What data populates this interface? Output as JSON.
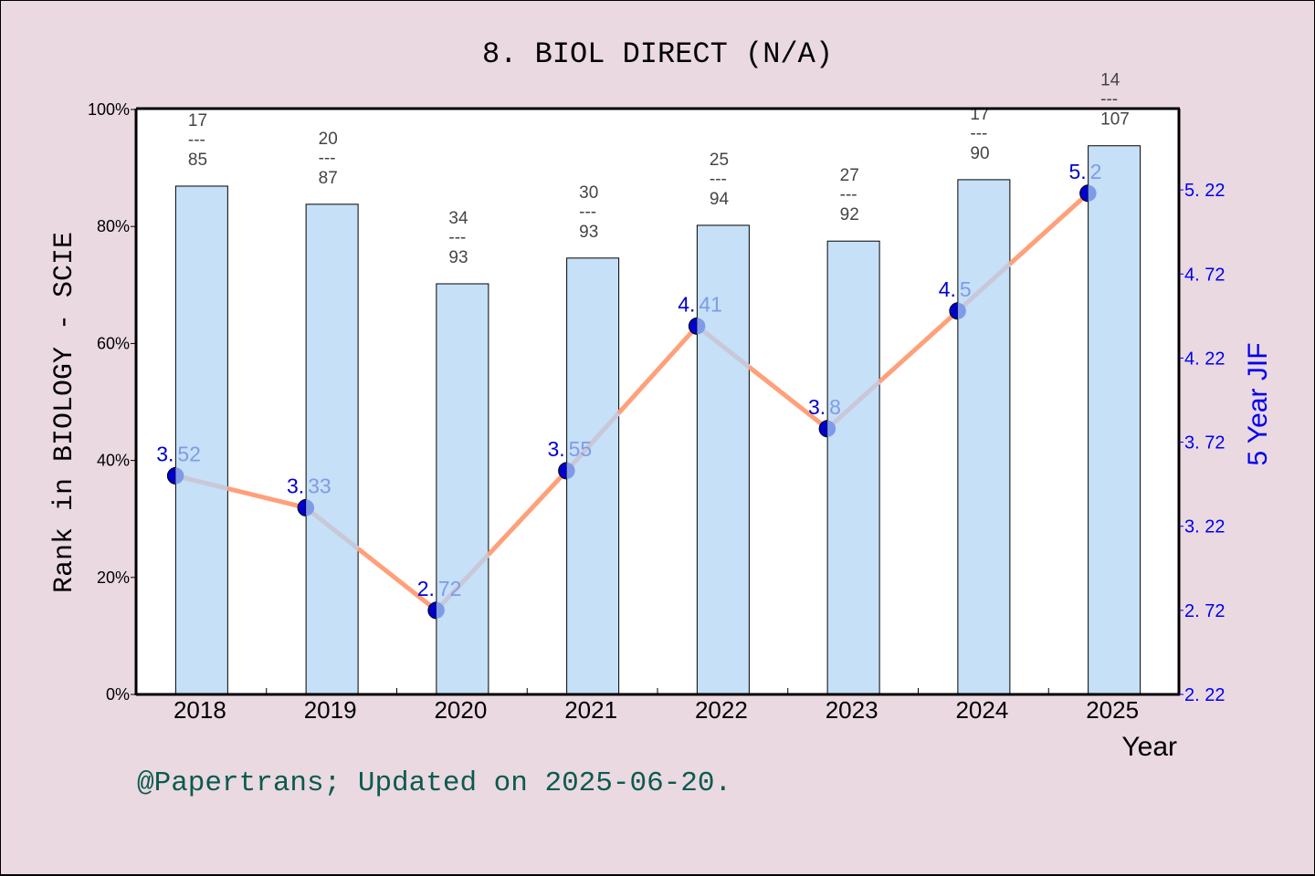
{
  "title": "8. BIOL DIRECT (N/A)",
  "footer": "@Papertrans; Updated on 2025-06-20.",
  "colors": {
    "background": "#ead9e1",
    "plot_bg": "#ffffff",
    "bar_fill": "#c5e0f7",
    "line_up": "#ffa07a",
    "line_down": "#c8c8d8",
    "marker_dark": "#0000cc",
    "marker_light": "#7f9be8",
    "right_axis": "#0000ee",
    "footer": "#0b5a4f"
  },
  "chart_data": {
    "type": "bar+line",
    "title": "8. BIOL DIRECT (N/A)",
    "xlabel": "Year",
    "ylabel": "Rank in BIOLOGY - SCIE",
    "y2label": "5 Year JIF",
    "categories": [
      "2018",
      "2019",
      "2020",
      "2021",
      "2022",
      "2023",
      "2024",
      "2025"
    ],
    "ylim": [
      0,
      100
    ],
    "yticks": [
      "0%",
      "20%",
      "40%",
      "60%",
      "80%",
      "100%"
    ],
    "y2lim": [
      2.22,
      5.72
    ],
    "y2ticks": [
      "2.22",
      "2.72",
      "3.22",
      "3.72",
      "4.22",
      "4.72",
      "5.22"
    ],
    "y2tick_labels": [
      "2. 22",
      "2. 72",
      "3. 22",
      "3. 72",
      "4. 22",
      "4. 72",
      "5. 22"
    ],
    "series": [
      {
        "name": "Rank percentile (bar)",
        "type": "bar",
        "values": [
          86.9,
          83.8,
          70.2,
          74.6,
          80.2,
          77.5,
          88.0,
          93.8
        ],
        "labels": [
          {
            "rank": "17",
            "sep": "---",
            "total": "85"
          },
          {
            "rank": "20",
            "sep": "---",
            "total": "87"
          },
          {
            "rank": "34",
            "sep": "---",
            "total": "93"
          },
          {
            "rank": "30",
            "sep": "---",
            "total": "93"
          },
          {
            "rank": "25",
            "sep": "---",
            "total": "94"
          },
          {
            "rank": "27",
            "sep": "---",
            "total": "92"
          },
          {
            "rank": "17",
            "sep": "---",
            "total": "90"
          },
          {
            "rank": "14",
            "sep": "---",
            "total": "107"
          }
        ]
      },
      {
        "name": "5 Year JIF (line)",
        "type": "line",
        "axis": "right",
        "values": [
          3.52,
          3.33,
          2.72,
          3.55,
          4.41,
          3.8,
          4.5,
          5.2
        ],
        "labels": [
          {
            "int": "3.",
            "dec": "52"
          },
          {
            "int": "3.",
            "dec": "33"
          },
          {
            "int": "2.",
            "dec": "72"
          },
          {
            "int": "3.",
            "dec": "55"
          },
          {
            "int": "4.",
            "dec": "41"
          },
          {
            "int": "3.",
            "dec": "8"
          },
          {
            "int": "4.",
            "dec": "5"
          },
          {
            "int": "5.",
            "dec": "2"
          }
        ]
      }
    ],
    "grid": false,
    "legend": "none"
  }
}
